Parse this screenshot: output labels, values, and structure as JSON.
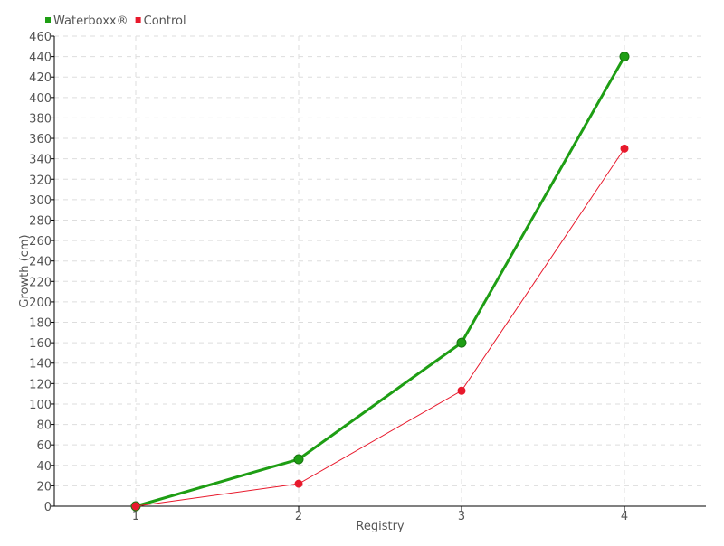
{
  "chart_data": {
    "type": "line",
    "title": "",
    "xlabel": "Registry",
    "ylabel": "Growth (cm)",
    "x": [
      1,
      2,
      3,
      4
    ],
    "ylim": [
      0,
      460
    ],
    "ystep": 20,
    "grid": true,
    "legend_placement": "top-left",
    "series": [
      {
        "name": "Waterboxx®",
        "values": [
          0,
          46,
          160,
          440
        ],
        "color": "#1e9e14"
      },
      {
        "name": "Control",
        "values": [
          0,
          22,
          113,
          350
        ],
        "color": "#e8192c"
      }
    ]
  }
}
